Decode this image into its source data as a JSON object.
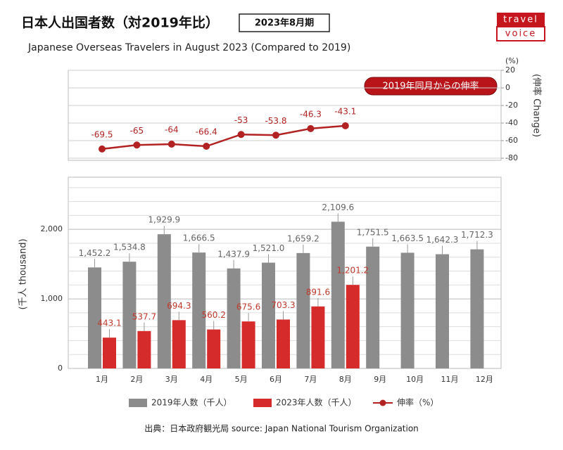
{
  "header": {
    "title": "日本人出国者数（対2019年比）",
    "period": "2023年8月期",
    "subtitle": "Japanese Overseas Travelers in August 2023 (Compared to 2019)",
    "logo": [
      "travel",
      "voice"
    ]
  },
  "chart_data": [
    {
      "type": "line",
      "unit": "(%)",
      "y_label": "(伸率 Change)",
      "annotation": "2019年同月からの伸率",
      "series": [
        {
          "name": "伸率（%）",
          "color": "#b22222",
          "axis": "y2",
          "values": [
            -69.5,
            -65.0,
            -64.0,
            -66.4,
            -53.0,
            -53.8,
            -46.3,
            -43.1,
            null,
            null,
            null,
            null
          ]
        }
      ],
      "y2lim": [
        -80,
        20
      ],
      "y2ticks": [
        -80,
        -60,
        -40,
        -20,
        0,
        20
      ],
      "grid": true
    },
    {
      "type": "bar",
      "y_label": "(千人 thousand)",
      "categories": [
        "1月",
        "2月",
        "3月",
        "4月",
        "5月",
        "6月",
        "7月",
        "8月",
        "9月",
        "10月",
        "11月",
        "12月"
      ],
      "series": [
        {
          "name": "2019年人数（千人）",
          "color": "#8c8c8c",
          "values": [
            1452.2,
            1534.8,
            1929.9,
            1666.5,
            1437.9,
            1521.0,
            1659.2,
            2109.6,
            1751.5,
            1663.5,
            1642.3,
            1712.3
          ],
          "value_labels": [
            "1,452.2",
            "1,534.8",
            "1,929.9",
            "1,666.5",
            "1,437.9",
            "1,521.0",
            "1,659.2",
            "2,109.6",
            "1,751.5",
            "1,663.5",
            "1,642.3",
            "1,712.3"
          ]
        },
        {
          "name": "2023年人数（千人）",
          "color": "#d62b2b",
          "values": [
            443.1,
            537.7,
            694.3,
            560.2,
            675.6,
            703.3,
            891.6,
            1201.2,
            null,
            null,
            null,
            null
          ],
          "value_labels": [
            "443.1",
            "537.7",
            "694.3",
            "560.2",
            "675.6",
            "703.3",
            "891.6",
            "1,201.2",
            null,
            null,
            null,
            null
          ]
        }
      ],
      "ylim": [
        0,
        2750
      ],
      "yticks": [
        0,
        {
          "value": 1000,
          "label": "1,000"
        },
        {
          "value": 2000,
          "label": "2,000"
        }
      ],
      "yticks_minor": [
        200,
        400,
        600,
        800,
        1200,
        1400,
        1600,
        1800,
        2200,
        2400,
        2600
      ],
      "grid": true,
      "legend": "bottom"
    }
  ],
  "source": "出典：日本政府観光局  source: Japan National Tourism Organization"
}
